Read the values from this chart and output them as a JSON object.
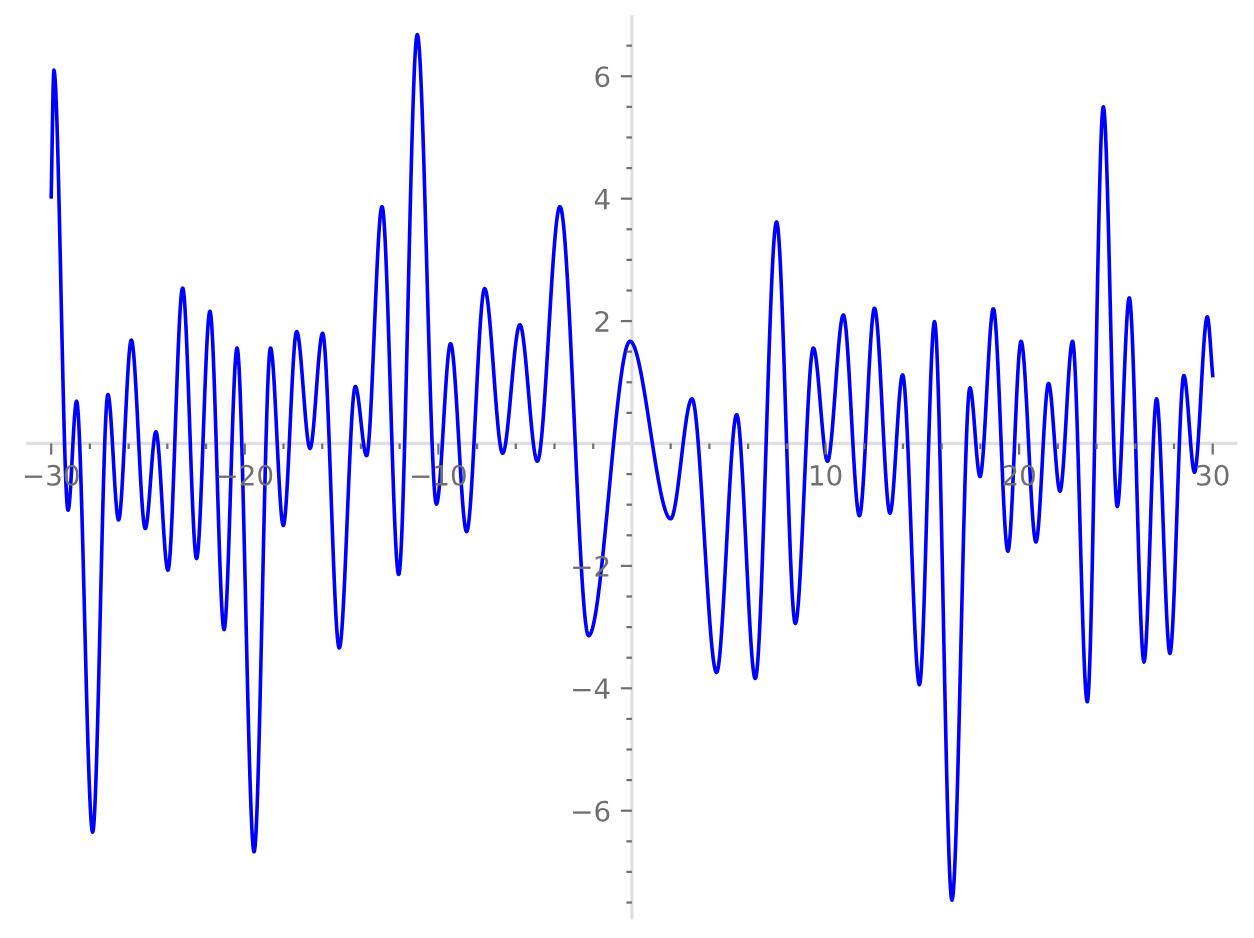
{
  "chart_data": {
    "type": "line",
    "x": [
      -30,
      -29.86,
      -29.13,
      -28.69,
      -27.86,
      -27.07,
      -26.52,
      -25.86,
      -25.14,
      -24.59,
      -23.97,
      -23.21,
      -22.49,
      -21.8,
      -21.07,
      -20.4,
      -19.52,
      -18.67,
      -18.01,
      -17.32,
      -16.63,
      -15.98,
      -15.12,
      -14.29,
      -13.71,
      -12.91,
      -12.05,
      -11.09,
      -10.1,
      -9.37,
      -8.54,
      -7.61,
      -6.68,
      -5.79,
      -4.89,
      -3.72,
      -2.24,
      -0.1,
      2.0,
      3.1,
      4.37,
      5.41,
      6.37,
      7.47,
      8.44,
      9.37,
      10.1,
      10.92,
      11.75,
      12.53,
      13.33,
      13.98,
      14.85,
      15.63,
      16.53,
      17.46,
      17.98,
      18.67,
      19.42,
      20.1,
      20.87,
      21.52,
      22.11,
      22.76,
      23.52,
      24.35,
      25.07,
      25.69,
      26.45,
      27.1,
      27.79,
      28.51,
      29.06,
      29.72,
      30
    ],
    "series": [
      {
        "color": "#0000ff",
        "values": [
          4.03,
          6.1,
          -1.09,
          0.69,
          -6.35,
          0.8,
          -1.25,
          1.69,
          -1.39,
          0.19,
          -2.07,
          2.54,
          -1.88,
          2.16,
          -3.04,
          1.56,
          -6.67,
          1.56,
          -1.34,
          1.83,
          -0.08,
          1.8,
          -3.34,
          0.93,
          -0.2,
          3.87,
          -2.14,
          6.68,
          -0.99,
          1.63,
          -1.44,
          2.53,
          -0.16,
          1.94,
          -0.29,
          3.87,
          -3.14,
          1.67,
          -1.23,
          0.73,
          -3.74,
          0.47,
          -3.84,
          3.62,
          -2.94,
          1.56,
          -0.29,
          2.1,
          -1.18,
          2.21,
          -1.14,
          1.12,
          -3.94,
          1.99,
          -7.46,
          0.91,
          -0.54,
          2.2,
          -1.76,
          1.67,
          -1.61,
          0.98,
          -0.78,
          1.67,
          -4.22,
          5.5,
          -1.03,
          2.38,
          -3.57,
          0.73,
          -3.43,
          1.11,
          -0.47,
          2.07,
          1.11
        ]
      }
    ],
    "xlim": [
      -31.2,
      31.2
    ],
    "ylim": [
      -7.75,
      6.97
    ],
    "xticks": [
      {
        "value": -30,
        "label": "−30"
      },
      {
        "value": -20,
        "label": "−20"
      },
      {
        "value": -10,
        "label": "−10"
      },
      10,
      20,
      30,
      {
        "value": -28,
        "label": null
      },
      {
        "value": -26,
        "label": null
      },
      {
        "value": -24,
        "label": null
      },
      {
        "value": -22,
        "label": null
      },
      {
        "value": -18,
        "label": null
      },
      {
        "value": -16,
        "label": null
      },
      {
        "value": -14,
        "label": null
      },
      {
        "value": -12,
        "label": null
      },
      {
        "value": -8,
        "label": null
      },
      {
        "value": -6,
        "label": null
      },
      {
        "value": -4,
        "label": null
      },
      {
        "value": -2,
        "label": null
      },
      {
        "value": 2,
        "label": null
      },
      {
        "value": 4,
        "label": null
      },
      {
        "value": 6,
        "label": null
      },
      {
        "value": 8,
        "label": null
      },
      {
        "value": 12,
        "label": null
      },
      {
        "value": 14,
        "label": null
      },
      {
        "value": 16,
        "label": null
      },
      {
        "value": 18,
        "label": null
      },
      {
        "value": 22,
        "label": null
      },
      {
        "value": 24,
        "label": null
      },
      {
        "value": 26,
        "label": null
      },
      {
        "value": 28,
        "label": null
      }
    ],
    "yticks": [
      {
        "value": -6,
        "label": "−6"
      },
      {
        "value": -4,
        "label": "−4"
      },
      {
        "value": -2,
        "label": "−2"
      },
      2,
      4,
      6,
      {
        "value": -7.5,
        "label": null
      },
      {
        "value": -7,
        "label": null
      },
      {
        "value": -6.5,
        "label": null
      },
      {
        "value": -5.5,
        "label": null
      },
      {
        "value": -5,
        "label": null
      },
      {
        "value": -4.5,
        "label": null
      },
      {
        "value": -3.5,
        "label": null
      },
      {
        "value": -3,
        "label": null
      },
      {
        "value": -2.5,
        "label": null
      },
      {
        "value": -1.5,
        "label": null
      },
      {
        "value": -1,
        "label": null
      },
      {
        "value": -0.5,
        "label": null
      },
      {
        "value": 0.5,
        "label": null
      },
      {
        "value": 1,
        "label": null
      },
      {
        "value": 1.5,
        "label": null
      },
      {
        "value": 2.5,
        "label": null
      },
      {
        "value": 3,
        "label": null
      },
      {
        "value": 3.5,
        "label": null
      },
      {
        "value": 4.5,
        "label": null
      },
      {
        "value": 5,
        "label": null
      },
      {
        "value": 5.5,
        "label": null
      },
      {
        "value": 6.5,
        "label": null
      }
    ]
  }
}
